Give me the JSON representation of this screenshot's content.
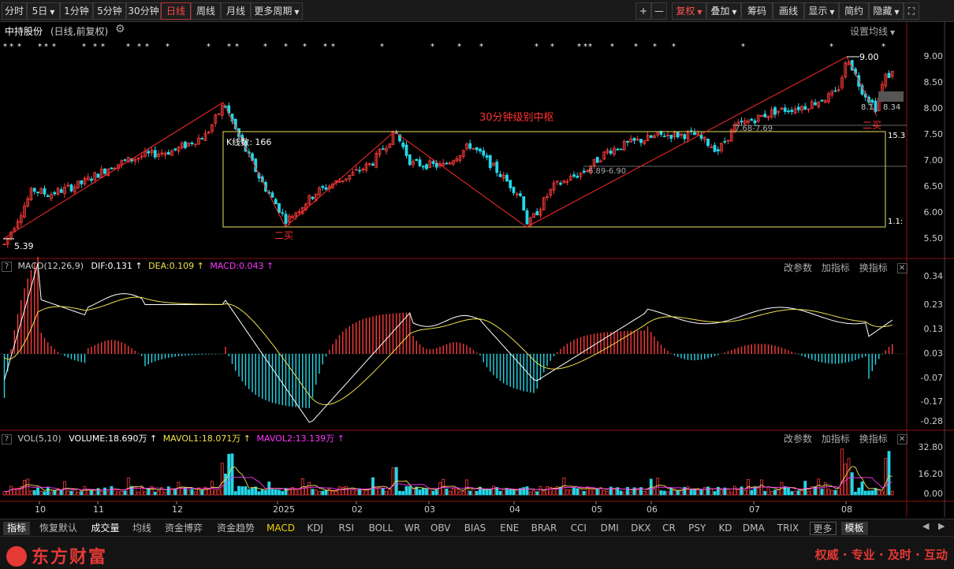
{
  "toolbar": {
    "left": [
      {
        "label": "分时",
        "active": false,
        "caret": false
      },
      {
        "label": "5日",
        "active": false,
        "caret": true
      },
      {
        "label": "1分钟",
        "active": false,
        "caret": false
      },
      {
        "label": "5分钟",
        "active": false,
        "caret": false
      },
      {
        "label": "30分钟",
        "active": false,
        "caret": false
      },
      {
        "label": "日线",
        "active": true,
        "caret": false
      },
      {
        "label": "周线",
        "active": false,
        "caret": false
      },
      {
        "label": "月线",
        "active": false,
        "caret": false
      },
      {
        "label": "更多周期",
        "active": false,
        "caret": true
      }
    ],
    "right": [
      {
        "label": "+"
      },
      {
        "label": "—"
      },
      {
        "label": "复权",
        "caret": true,
        "red": true
      },
      {
        "label": "叠加",
        "caret": true
      },
      {
        "label": "筹码"
      },
      {
        "label": "画线"
      },
      {
        "label": "显示",
        "caret": true
      },
      {
        "label": "简约"
      },
      {
        "label": "隐藏",
        "caret": true
      },
      {
        "label": "⛶"
      }
    ]
  },
  "info": {
    "stock_name": "中持股份",
    "mode": "(日线,前复权)",
    "settings_label": "设置均线"
  },
  "annotations": {
    "zhongshu_label": "30分钟级别中枢",
    "kline_count": "K线数: 166",
    "high_label": "9.00",
    "low_label": "5.39",
    "second_buy_1": "二买",
    "second_buy_2": "二买",
    "range_1": "7.68-7.69",
    "range_2": "6.89-6.90",
    "price_834": "8.34",
    "price_81": "8.1",
    "right_pct_1": "15.3",
    "right_pct_2": "1.1:"
  },
  "price_axis": [
    "9.00",
    "8.50",
    "8.00",
    "7.50",
    "7.00",
    "6.50",
    "6.00",
    "5.50"
  ],
  "macd": {
    "name": "MACD(12,26,9)",
    "dif": "DIF:0.131",
    "dea": "DEA:0.109",
    "macd": "MACD:0.043",
    "axis": [
      "0.34",
      "0.23",
      "0.13",
      "0.03",
      "-0.07",
      "-0.17",
      "-0.28"
    ],
    "actions": [
      "改参数",
      "加指标",
      "换指标"
    ]
  },
  "vol": {
    "name": "VOL(5,10)",
    "volume": "VOLUME:18.690万",
    "mavol1": "MAVOL1:18.071万",
    "mavol2": "MAVOL2:13.139万",
    "axis": [
      "32.80",
      "16.20",
      "0.00"
    ],
    "actions": [
      "改参数",
      "加指标",
      "换指标"
    ]
  },
  "time_axis": [
    "10",
    "11",
    "12",
    "2025",
    "02",
    "03",
    "04",
    "05",
    "06",
    "07",
    "08"
  ],
  "bottom_tabs": [
    {
      "label": "指标",
      "on": true
    },
    {
      "label": "恢复默认"
    },
    {
      "label": "成交量",
      "white": true
    },
    {
      "label": "均线"
    },
    {
      "label": "资金博弈"
    },
    {
      "label": "资金趋势"
    },
    {
      "label": "MACD",
      "yellow": true
    },
    {
      "label": "KDJ"
    },
    {
      "label": "RSI"
    },
    {
      "label": "BOLL"
    },
    {
      "label": "WR"
    },
    {
      "label": "OBV"
    },
    {
      "label": "BIAS"
    },
    {
      "label": "ENE"
    },
    {
      "label": "BRAR"
    },
    {
      "label": "CCI"
    },
    {
      "label": "DMI"
    },
    {
      "label": "DKX"
    },
    {
      "label": "CR"
    },
    {
      "label": "PSY"
    },
    {
      "label": "KD"
    },
    {
      "label": "DMA"
    },
    {
      "label": "TRIX"
    },
    {
      "label": "更多",
      "box": true
    },
    {
      "label": "模板",
      "on": true
    }
  ],
  "footer": {
    "brand": "东方财富",
    "slogan": "权威 · 专业 · 及时 · 互动"
  },
  "colors": {
    "up": "#ff3b3b",
    "down": "#24d7e8",
    "zhongshu": "#e8e060",
    "dif": "#ffffff",
    "dea": "#f0e050",
    "macd_label": "#ff33ff"
  }
}
